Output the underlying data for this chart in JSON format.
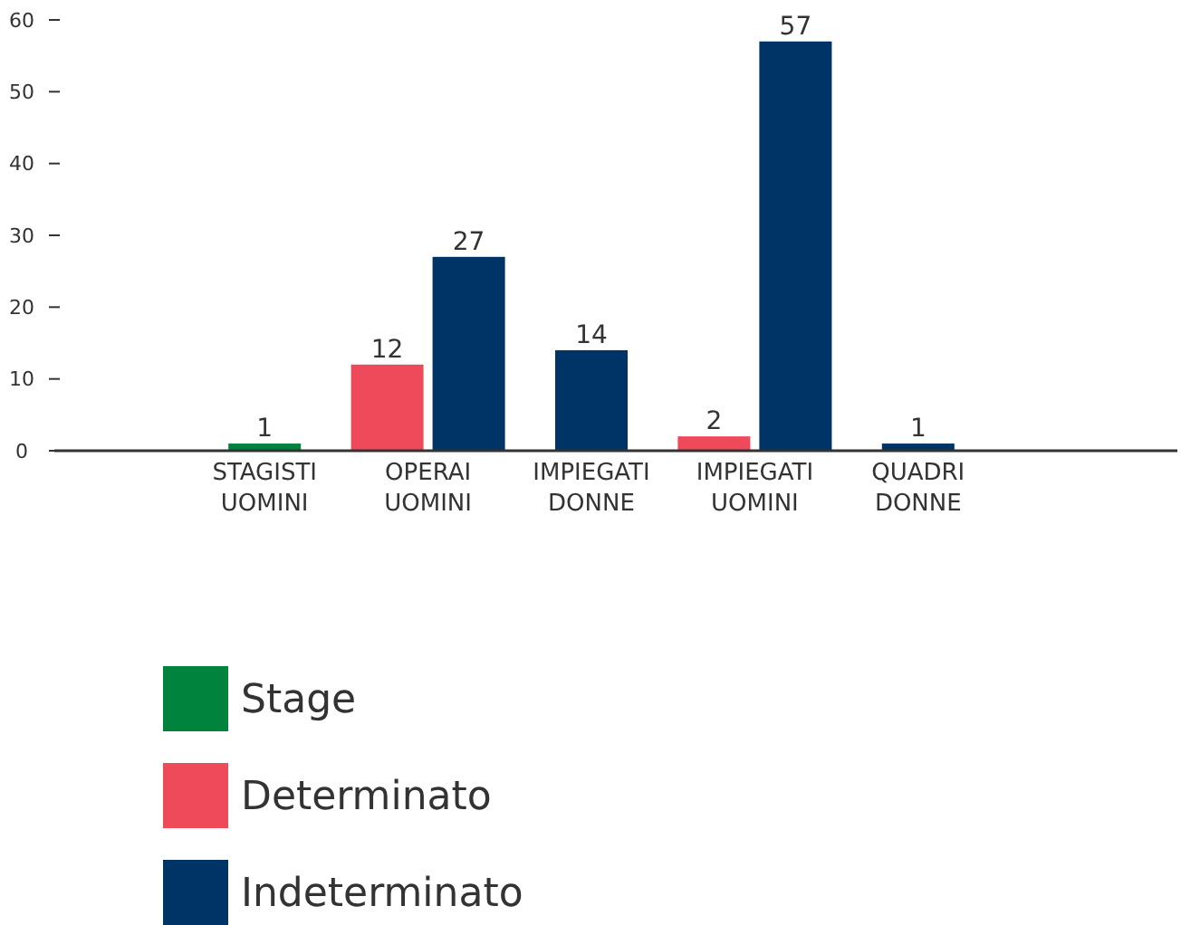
{
  "chart_data": {
    "type": "bar",
    "categories": [
      "STAGISTI UOMINI",
      "OPERAI UOMINI",
      "IMPIEGATI DONNE",
      "IMPIEGATI UOMINI",
      "QUADRI DONNE"
    ],
    "series": [
      {
        "name": "Stage",
        "color": "#00843d",
        "values": [
          1,
          null,
          null,
          null,
          null
        ]
      },
      {
        "name": "Determinato",
        "color": "#ef4a5a",
        "values": [
          null,
          12,
          null,
          2,
          null
        ]
      },
      {
        "name": "Indeterminato",
        "color": "#003366",
        "values": [
          null,
          27,
          14,
          57,
          1
        ]
      }
    ],
    "ylim": [
      0,
      60
    ],
    "yticks": [
      0,
      10,
      20,
      30,
      40,
      50,
      60
    ],
    "data_labels": true,
    "grid": false,
    "legend": "bottom left"
  }
}
